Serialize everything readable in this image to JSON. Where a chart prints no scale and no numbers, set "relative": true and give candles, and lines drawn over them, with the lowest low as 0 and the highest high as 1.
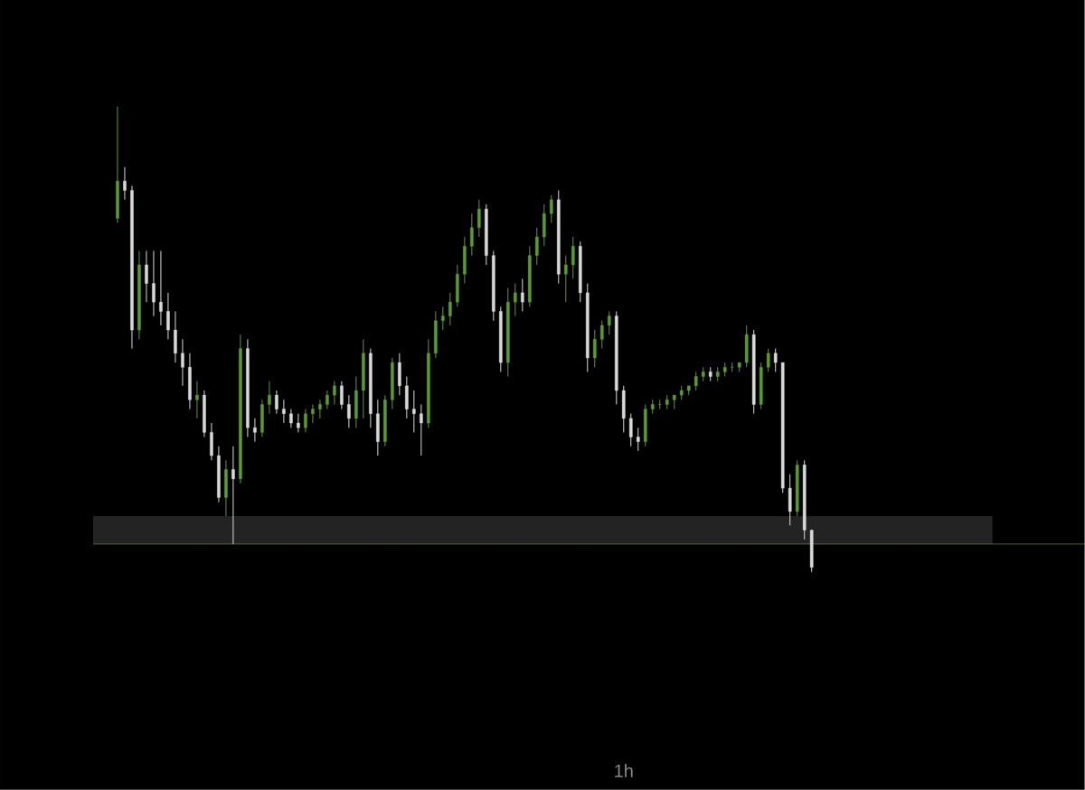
{
  "chart_data": {
    "type": "candlestick",
    "title": "1h",
    "relative": true,
    "categories": [
      null,
      null,
      null,
      null,
      null,
      null,
      null,
      null,
      null,
      null,
      null,
      null,
      null,
      null,
      null,
      null,
      null,
      null,
      null,
      null,
      null,
      null,
      null,
      null,
      null,
      null,
      null,
      null,
      null,
      null,
      null,
      null,
      null,
      null,
      null,
      null,
      null,
      null,
      null,
      null,
      null,
      null,
      null,
      null,
      null,
      null,
      null,
      null,
      null,
      null,
      null,
      null,
      null,
      null,
      null,
      null,
      null,
      null,
      null,
      null,
      null,
      null,
      null,
      null,
      null,
      null,
      null,
      null,
      null,
      null,
      null,
      null,
      null,
      null,
      null,
      null,
      null,
      null,
      null,
      null,
      null,
      null,
      null,
      null,
      null,
      null,
      null,
      null,
      null,
      null,
      null,
      null,
      null,
      null,
      null,
      null,
      null
    ],
    "colors": [
      "#5b9c32",
      "#d9d9d9",
      "#d9d9d9",
      "#5b9c32",
      "#d9d9d9",
      "#d9d9d9",
      "#d9d9d9",
      "#d9d9d9",
      "#d9d9d9",
      "#d9d9d9",
      "#d9d9d9",
      "#5b9c32",
      "#d9d9d9",
      "#d9d9d9",
      "#d9d9d9",
      "#5b9c32",
      "#d9d9d9",
      "#5b9c32",
      "#d9d9d9",
      "#d9d9d9",
      "#5b9c32",
      "#5b9c32",
      "#d9d9d9",
      "#d9d9d9",
      "#d9d9d9",
      "#d9d9d9",
      "#5b9c32",
      "#5b9c32",
      "#5b9c32",
      "#5b9c32",
      "#5b9c32",
      "#d9d9d9",
      "#d9d9d9",
      "#5b9c32",
      "#5b9c32",
      "#d9d9d9",
      "#d9d9d9",
      "#5b9c32",
      "#5b9c32",
      "#d9d9d9",
      "#d9d9d9",
      "#d9d9d9",
      "#d9d9d9",
      "#5b9c32",
      "#5b9c32",
      "#5b9c32",
      "#5b9c32",
      "#5b9c32",
      "#5b9c32",
      "#5b9c32",
      "#5b9c32",
      "#d9d9d9",
      "#d9d9d9",
      "#d9d9d9",
      "#5b9c32",
      "#5b9c32",
      "#d9d9d9",
      "#5b9c32",
      "#5b9c32",
      "#5b9c32",
      "#5b9c32",
      "#d9d9d9",
      "#5b9c32",
      "#5b9c32",
      "#d9d9d9",
      "#d9d9d9",
      "#5b9c32",
      "#5b9c32",
      "#5b9c32",
      "#d9d9d9",
      "#d9d9d9",
      "#d9d9d9",
      "#d9d9d9",
      "#5b9c32",
      "#5b9c32",
      "#5b9c32",
      "#5b9c32",
      "#5b9c32",
      "#5b9c32",
      "#5b9c32",
      "#5b9c32",
      "#5b9c32",
      "#d9d9d9",
      "#5b9c32",
      "#5b9c32",
      "#5b9c32",
      "#5b9c32",
      "#5b9c32",
      "#d9d9d9",
      "#5b9c32",
      "#5b9c32",
      "#d9d9d9",
      "#d9d9d9",
      "#d9d9d9",
      "#5b9c32",
      "#d9d9d9",
      "#d9d9d9"
    ],
    "ohlc": [
      [
        0.76,
        1.0,
        0.75,
        0.84
      ],
      [
        0.84,
        0.87,
        0.8,
        0.82
      ],
      [
        0.82,
        0.83,
        0.48,
        0.52
      ],
      [
        0.52,
        0.69,
        0.5,
        0.66
      ],
      [
        0.66,
        0.69,
        0.58,
        0.62
      ],
      [
        0.62,
        0.69,
        0.55,
        0.58
      ],
      [
        0.58,
        0.69,
        0.53,
        0.56
      ],
      [
        0.56,
        0.6,
        0.5,
        0.52
      ],
      [
        0.52,
        0.56,
        0.45,
        0.47
      ],
      [
        0.47,
        0.5,
        0.4,
        0.44
      ],
      [
        0.44,
        0.47,
        0.35,
        0.37
      ],
      [
        0.37,
        0.41,
        0.33,
        0.38
      ],
      [
        0.38,
        0.39,
        0.29,
        0.3
      ],
      [
        0.3,
        0.32,
        0.24,
        0.25
      ],
      [
        0.25,
        0.27,
        0.15,
        0.16
      ],
      [
        0.16,
        0.24,
        0.12,
        0.22
      ],
      [
        0.22,
        0.27,
        0.06,
        0.2
      ],
      [
        0.2,
        0.51,
        0.19,
        0.48
      ],
      [
        0.48,
        0.5,
        0.29,
        0.31
      ],
      [
        0.31,
        0.33,
        0.28,
        0.3
      ],
      [
        0.3,
        0.37,
        0.29,
        0.36
      ],
      [
        0.36,
        0.41,
        0.34,
        0.38
      ],
      [
        0.38,
        0.39,
        0.34,
        0.35
      ],
      [
        0.35,
        0.37,
        0.32,
        0.34
      ],
      [
        0.34,
        0.35,
        0.31,
        0.32
      ],
      [
        0.32,
        0.34,
        0.3,
        0.31
      ],
      [
        0.31,
        0.35,
        0.3,
        0.34
      ],
      [
        0.34,
        0.36,
        0.32,
        0.35
      ],
      [
        0.35,
        0.37,
        0.33,
        0.36
      ],
      [
        0.36,
        0.39,
        0.35,
        0.38
      ],
      [
        0.38,
        0.41,
        0.36,
        0.4
      ],
      [
        0.4,
        0.41,
        0.35,
        0.36
      ],
      [
        0.36,
        0.38,
        0.31,
        0.33
      ],
      [
        0.33,
        0.42,
        0.31,
        0.39
      ],
      [
        0.39,
        0.5,
        0.33,
        0.47
      ],
      [
        0.47,
        0.48,
        0.31,
        0.34
      ],
      [
        0.34,
        0.37,
        0.25,
        0.28
      ],
      [
        0.28,
        0.38,
        0.27,
        0.37
      ],
      [
        0.37,
        0.46,
        0.35,
        0.45
      ],
      [
        0.45,
        0.47,
        0.38,
        0.4
      ],
      [
        0.4,
        0.42,
        0.33,
        0.35
      ],
      [
        0.35,
        0.39,
        0.3,
        0.34
      ],
      [
        0.34,
        0.36,
        0.25,
        0.32
      ],
      [
        0.32,
        0.5,
        0.31,
        0.47
      ],
      [
        0.47,
        0.56,
        0.46,
        0.54
      ],
      [
        0.54,
        0.57,
        0.52,
        0.55
      ],
      [
        0.55,
        0.6,
        0.53,
        0.58
      ],
      [
        0.58,
        0.66,
        0.57,
        0.64
      ],
      [
        0.64,
        0.72,
        0.62,
        0.7
      ],
      [
        0.7,
        0.77,
        0.68,
        0.74
      ],
      [
        0.74,
        0.8,
        0.72,
        0.78
      ],
      [
        0.78,
        0.79,
        0.66,
        0.68
      ],
      [
        0.68,
        0.69,
        0.54,
        0.56
      ],
      [
        0.56,
        0.57,
        0.43,
        0.45
      ],
      [
        0.45,
        0.61,
        0.42,
        0.58
      ],
      [
        0.58,
        0.62,
        0.55,
        0.6
      ],
      [
        0.6,
        0.63,
        0.56,
        0.58
      ],
      [
        0.58,
        0.7,
        0.57,
        0.68
      ],
      [
        0.68,
        0.74,
        0.66,
        0.72
      ],
      [
        0.72,
        0.79,
        0.7,
        0.77
      ],
      [
        0.77,
        0.81,
        0.75,
        0.8
      ],
      [
        0.8,
        0.82,
        0.62,
        0.64
      ],
      [
        0.64,
        0.68,
        0.58,
        0.66
      ],
      [
        0.66,
        0.72,
        0.63,
        0.7
      ],
      [
        0.7,
        0.71,
        0.58,
        0.6
      ],
      [
        0.6,
        0.62,
        0.43,
        0.46
      ],
      [
        0.46,
        0.52,
        0.44,
        0.5
      ],
      [
        0.5,
        0.54,
        0.48,
        0.53
      ],
      [
        0.53,
        0.56,
        0.51,
        0.55
      ],
      [
        0.55,
        0.56,
        0.36,
        0.39
      ],
      [
        0.39,
        0.4,
        0.3,
        0.33
      ],
      [
        0.33,
        0.34,
        0.27,
        0.29
      ],
      [
        0.29,
        0.31,
        0.26,
        0.28
      ],
      [
        0.28,
        0.36,
        0.27,
        0.35
      ],
      [
        0.35,
        0.37,
        0.34,
        0.36
      ],
      [
        0.36,
        0.37,
        0.35,
        0.36
      ],
      [
        0.36,
        0.38,
        0.35,
        0.37
      ],
      [
        0.37,
        0.38,
        0.35,
        0.38
      ],
      [
        0.38,
        0.4,
        0.37,
        0.39
      ],
      [
        0.39,
        0.4,
        0.38,
        0.4
      ],
      [
        0.4,
        0.43,
        0.39,
        0.42
      ],
      [
        0.42,
        0.44,
        0.41,
        0.43
      ],
      [
        0.43,
        0.44,
        0.41,
        0.42
      ],
      [
        0.42,
        0.44,
        0.41,
        0.43
      ],
      [
        0.43,
        0.45,
        0.42,
        0.44
      ],
      [
        0.44,
        0.45,
        0.43,
        0.44
      ],
      [
        0.44,
        0.45,
        0.43,
        0.45
      ],
      [
        0.45,
        0.53,
        0.44,
        0.51
      ],
      [
        0.51,
        0.52,
        0.34,
        0.36
      ],
      [
        0.36,
        0.45,
        0.35,
        0.44
      ],
      [
        0.44,
        0.48,
        0.43,
        0.47
      ],
      [
        0.47,
        0.48,
        0.43,
        0.45
      ],
      [
        0.45,
        0.45,
        0.17,
        0.18
      ],
      [
        0.18,
        0.21,
        0.1,
        0.13
      ],
      [
        0.13,
        0.24,
        0.12,
        0.23
      ],
      [
        0.23,
        0.24,
        0.07,
        0.09
      ],
      [
        0.09,
        0.09,
        0.0,
        0.01
      ]
    ],
    "bands": [
      {
        "axis": "y",
        "from": 0.06,
        "to": 0.12,
        "color": "#232323"
      }
    ],
    "ref_lines": [
      {
        "axis": "y",
        "value": 0.06,
        "color": "#4a8a2a"
      }
    ]
  }
}
